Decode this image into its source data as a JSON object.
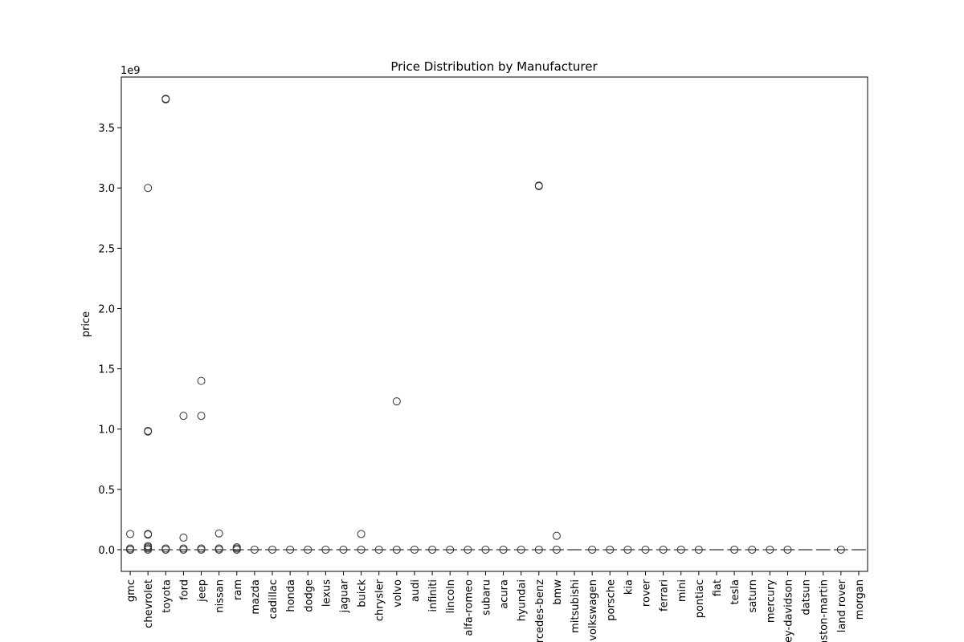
{
  "chart_data": {
    "type": "box",
    "title": "Price Distribution by Manufacturer",
    "xlabel": "",
    "ylabel": "price",
    "scale_label": "1e9",
    "ylim": [
      -180000000,
      3920000000
    ],
    "yticks": [
      0.0,
      0.5,
      1.0,
      1.5,
      2.0,
      2.5,
      3.0,
      3.5
    ],
    "ytick_labels": [
      "0.0",
      "0.5",
      "1.0",
      "1.5",
      "2.0",
      "2.5",
      "3.0",
      "3.5"
    ],
    "grid": false,
    "categories": [
      "gmc",
      "chevrolet",
      "toyota",
      "ford",
      "jeep",
      "nissan",
      "ram",
      "mazda",
      "cadillac",
      "honda",
      "dodge",
      "lexus",
      "jaguar",
      "buick",
      "chrysler",
      "volvo",
      "audi",
      "infiniti",
      "lincoln",
      "alfa-romeo",
      "subaru",
      "acura",
      "hyundai",
      "mercedes-benz",
      "bmw",
      "mitsubishi",
      "volkswagen",
      "porsche",
      "kia",
      "rover",
      "ferrari",
      "mini",
      "pontiac",
      "fiat",
      "tesla",
      "saturn",
      "mercury",
      "harley-davidson",
      "datsun",
      "aston-martin",
      "land rover",
      "morgan"
    ],
    "outliers": [
      [
        0,
        130000000,
        10000000,
        0
      ],
      [
        3000000000,
        985000000,
        980000000,
        130000000,
        125000000,
        30000000,
        20000000,
        10000000,
        0
      ],
      [
        3740000000,
        3735000000,
        10000000,
        0
      ],
      [
        1110000000,
        100000000,
        10000000,
        0
      ],
      [
        1400000000,
        1110000000,
        10000000,
        0
      ],
      [
        135000000,
        10000000,
        0
      ],
      [
        20000000,
        10000000,
        0
      ],
      [
        0
      ],
      [
        0
      ],
      [
        0
      ],
      [
        0
      ],
      [
        0
      ],
      [
        0
      ],
      [
        130000000,
        0
      ],
      [
        0
      ],
      [
        1230000000,
        0
      ],
      [
        0
      ],
      [
        0
      ],
      [
        0
      ],
      [
        0
      ],
      [
        0
      ],
      [
        0
      ],
      [
        0
      ],
      [
        3020000000,
        3015000000,
        0
      ],
      [
        115000000,
        0
      ],
      [],
      [
        0
      ],
      [
        0
      ],
      [
        0
      ],
      [
        0
      ],
      [
        0
      ],
      [
        0
      ],
      [
        0
      ],
      [],
      [
        0
      ],
      [
        0
      ],
      [
        0
      ],
      [
        0
      ],
      [],
      [],
      [
        0
      ],
      []
    ]
  }
}
